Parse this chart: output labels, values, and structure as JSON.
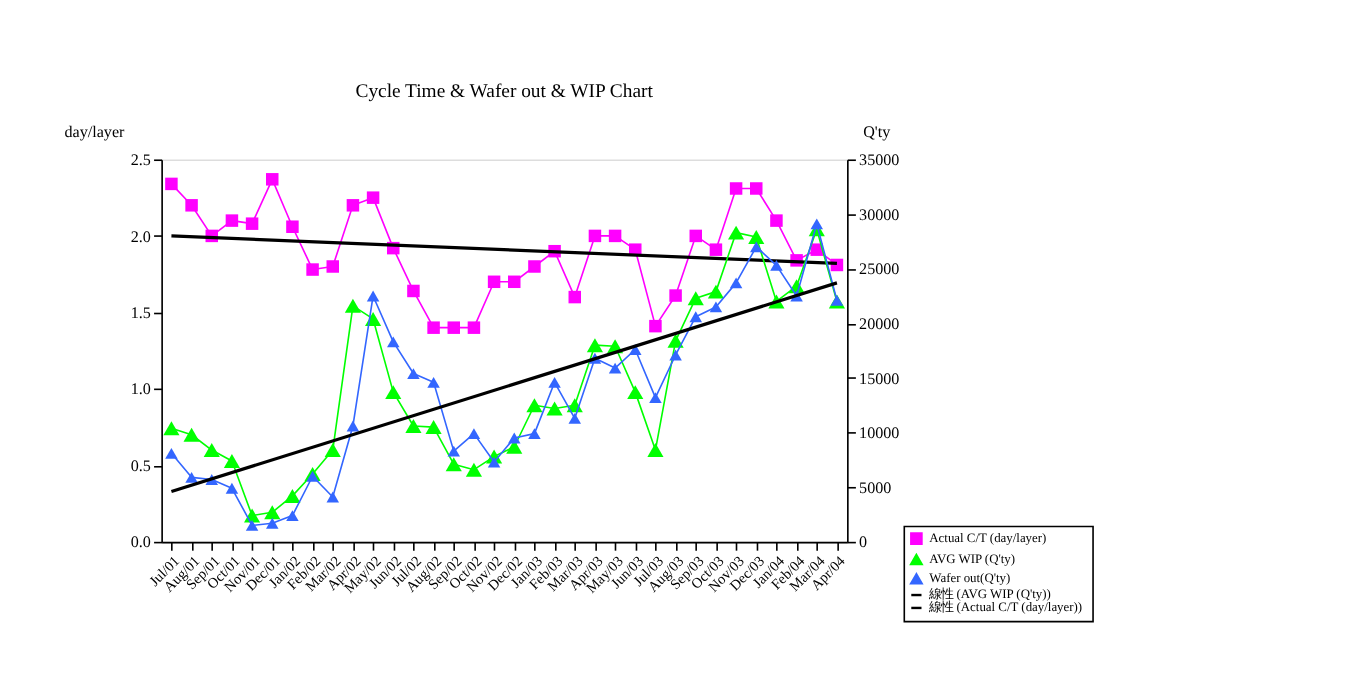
{
  "chart_data": {
    "type": "line",
    "title": "Cycle Time  & Wafer out & WIP Chart",
    "ylabel": "day/layer",
    "y2label": "Q'ty",
    "categories": [
      "Jul/01",
      "Aug/01",
      "Sep/01",
      "Oct/01",
      "Nov/01",
      "Dec/01",
      "Jan/02",
      "Feb/02",
      "Mar/02",
      "Apr/02",
      "May/02",
      "Jun/02",
      "Jul/02",
      "Aug/02",
      "Sep/02",
      "Oct/02",
      "Nov/02",
      "Dec/02",
      "Jan/03",
      "Feb/03",
      "Mar/03",
      "Apr/03",
      "May/03",
      "Jun/03",
      "Jul/03",
      "Aug/03",
      "Sep/03",
      "Oct/03",
      "Nov/03",
      "Dec/03",
      "Jan/04",
      "Feb/04",
      "Mar/04",
      "Apr/04"
    ],
    "ylim": [
      0,
      2.5
    ],
    "yticks": [
      {
        "value": 0,
        "label": "0.0"
      },
      {
        "value": 0.5,
        "label": "0.5"
      },
      {
        "value": 1,
        "label": "1.0"
      },
      {
        "value": 1.5,
        "label": "1.5"
      },
      {
        "value": 2,
        "label": "2.0"
      },
      {
        "value": 2.5,
        "label": "2.5"
      }
    ],
    "y2lim": [
      0,
      35000
    ],
    "y2ticks": [
      0,
      5000,
      10000,
      15000,
      20000,
      25000,
      30000,
      35000
    ],
    "grid": false,
    "legend": "bottom right",
    "series": [
      {
        "name": "Actual C/T (day/layer)",
        "color": "#ff00ff",
        "marker": "square",
        "values": [
          2.34,
          2.2,
          2.0,
          2.1,
          2.08,
          2.37,
          2.06,
          1.78,
          1.8,
          2.2,
          2.25,
          1.92,
          1.64,
          1.4,
          1.4,
          1.4,
          1.7,
          1.7,
          1.8,
          1.9,
          1.6,
          2.0,
          2.0,
          1.91,
          1.41,
          1.61,
          2.0,
          1.91,
          2.31,
          2.31,
          2.1,
          1.84,
          1.91,
          1.81
        ]
      },
      {
        "name": "AVG WIP (Q'ty)",
        "color": "#00ff00",
        "marker": "triangle",
        "axis": "y2",
        "values": [
          10400,
          9800,
          8400,
          7400,
          2400,
          2700,
          4200,
          6200,
          8400,
          21600,
          20400,
          13700,
          10600,
          10500,
          7100,
          6600,
          7800,
          8700,
          12500,
          12200,
          12500,
          18000,
          17900,
          13700,
          8400,
          18400,
          22300,
          22900,
          28300,
          27900,
          22000,
          23400,
          28600,
          22000
        ]
      },
      {
        "name": "Wafer out(Q'ty)",
        "color": "#3366ff",
        "marker": "triangle",
        "axis": "y2",
        "values": [
          8100,
          5900,
          5700,
          4900,
          1500,
          1700,
          2400,
          6000,
          4100,
          10600,
          22500,
          18300,
          15400,
          14600,
          8300,
          9900,
          7300,
          9500,
          9900,
          14600,
          11300,
          16800,
          15900,
          17600,
          13200,
          17100,
          20600,
          21500,
          23700,
          27000,
          25300,
          22500,
          29100,
          22100
        ]
      },
      {
        "name": "線性 (AVG WIP (Q'ty))",
        "color": "#000000",
        "marker": "none",
        "axis": "y2",
        "x": [
          "Jul/01",
          "Apr/04"
        ],
        "values": [
          4600,
          23700
        ]
      },
      {
        "name": "線性 (Actual C/T (day/layer))",
        "color": "#000000",
        "marker": "none",
        "x": [
          "Jul/01",
          "Apr/04"
        ],
        "values": [
          2.0,
          1.82
        ]
      }
    ]
  }
}
